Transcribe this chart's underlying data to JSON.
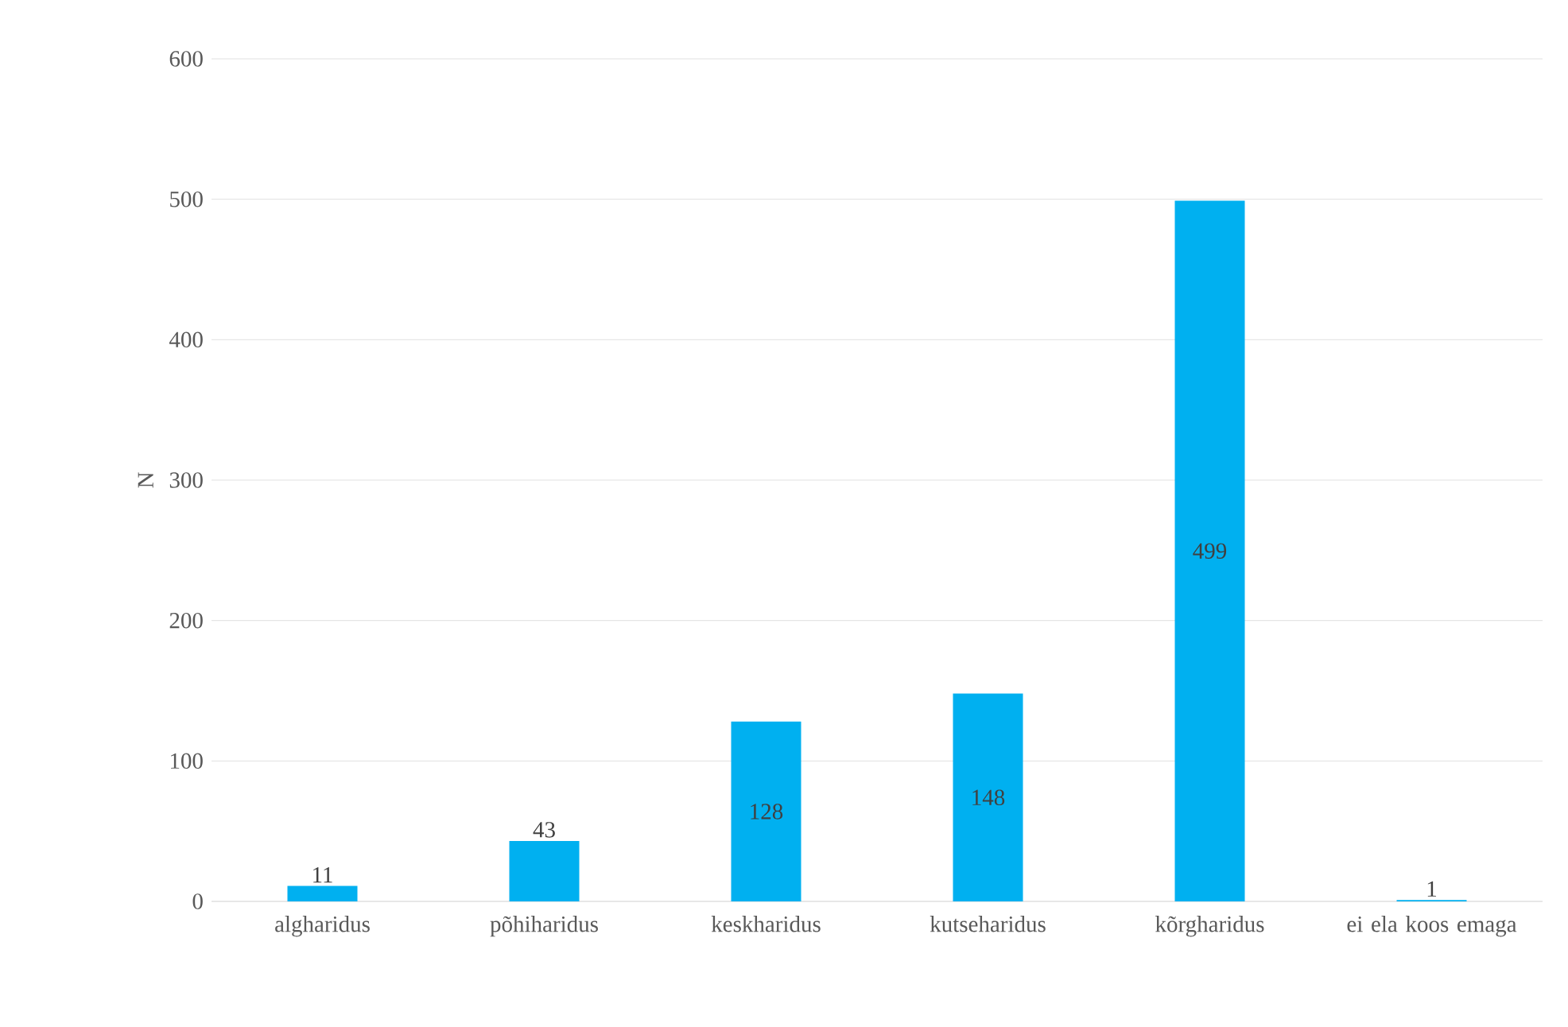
{
  "chart_data": {
    "type": "bar",
    "ylabel": "N",
    "categories": [
      "algharidus",
      "põhiharidus",
      "keskharidus",
      "kutseharidus",
      "kõrgharidus",
      "ei ela koos emaga"
    ],
    "values": [
      11,
      43,
      128,
      148,
      499,
      1
    ],
    "color": "#00b0f0",
    "ylim": [
      0,
      600
    ],
    "yticks": [
      0,
      100,
      200,
      300,
      400,
      500,
      600
    ],
    "grid": "y",
    "data_labels": true
  }
}
